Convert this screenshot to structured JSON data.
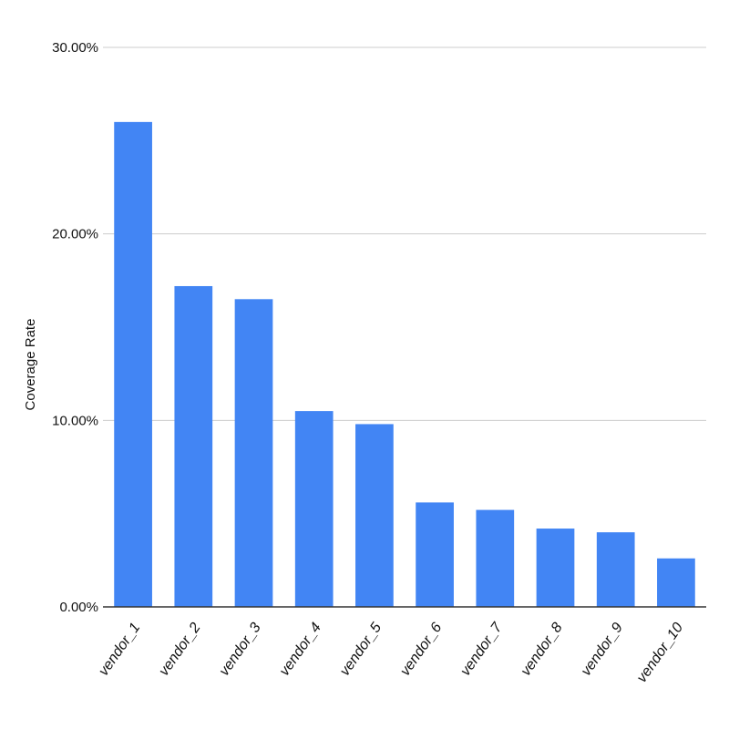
{
  "chart_data": {
    "type": "bar",
    "title": "",
    "xlabel": "",
    "ylabel": "Coverage Rate",
    "ylim": [
      0,
      30
    ],
    "yticks": [
      "0.00%",
      "10.00%",
      "20.00%",
      "30.00%"
    ],
    "categories": [
      "vendor_1",
      "vendor_2",
      "vendor_3",
      "vendor_4",
      "vendor_5",
      "vendor_6",
      "vendor_7",
      "vendor_8",
      "vendor_9",
      "vendor_10"
    ],
    "values": [
      26.0,
      17.2,
      16.5,
      10.5,
      9.8,
      5.6,
      5.2,
      4.2,
      4.0,
      2.6
    ],
    "grid": true,
    "legend": "none",
    "bar_color": "#4285F4",
    "grid_color": "#cccccc",
    "axis_color": "#333333"
  }
}
